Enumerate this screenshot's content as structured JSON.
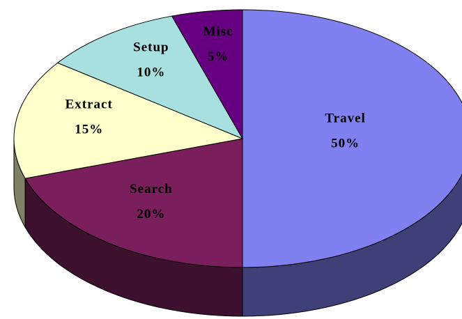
{
  "chart_data": {
    "type": "pie",
    "categories": [
      "Travel",
      "Search",
      "Extract",
      "Setup",
      "Misc"
    ],
    "values": [
      50,
      20,
      15,
      10,
      5
    ],
    "value_labels": [
      "50%",
      "20%",
      "15%",
      "10%",
      "5%"
    ],
    "colors": [
      "#8080f0",
      "#7a1f5c",
      "#ffffcc",
      "#a8e0e0",
      "#660080"
    ]
  }
}
